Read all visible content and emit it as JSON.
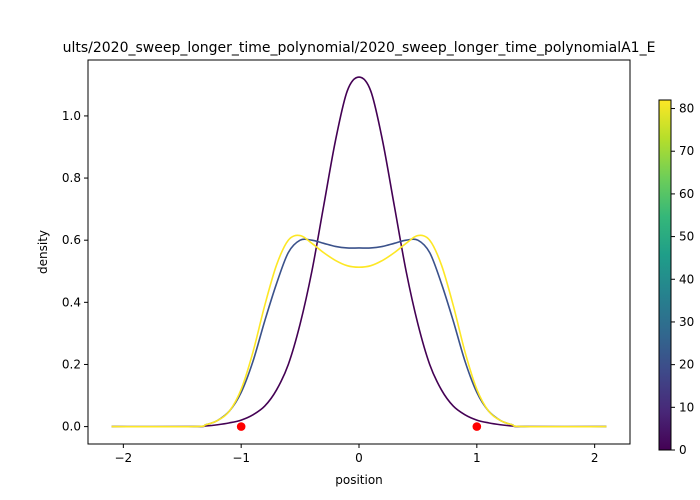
{
  "chart_data": {
    "type": "line",
    "title": "ults/2020_sweep_longer_time_polynomial/2020_sweep_longer_time_polynomialA1_E",
    "xlabel": "position",
    "ylabel": "density",
    "xlim": [
      -2.3,
      2.3
    ],
    "ylim": [
      -0.056,
      1.18
    ],
    "xticks": [
      -2,
      -1,
      0,
      1,
      2
    ],
    "yticks": [
      0.0,
      0.2,
      0.4,
      0.6,
      0.8,
      1.0
    ],
    "grid": false,
    "x_range": [
      -2.1,
      2.1
    ],
    "series": [
      {
        "color": "#440154",
        "x": [
          -2.1,
          -1.4,
          -1.3,
          -1.2,
          -1.1,
          -1.0,
          -0.9,
          -0.8,
          -0.7,
          -0.6,
          -0.5,
          -0.4,
          -0.3,
          -0.2,
          -0.1,
          0.0,
          0.1,
          0.2,
          0.3,
          0.4,
          0.5,
          0.6,
          0.7,
          0.8,
          0.9,
          1.0,
          1.1,
          1.2,
          1.3,
          1.4,
          2.1
        ],
        "y": [
          0.0,
          0.0,
          0.002,
          0.006,
          0.012,
          0.021,
          0.038,
          0.066,
          0.118,
          0.2,
          0.33,
          0.5,
          0.71,
          0.92,
          1.08,
          1.125,
          1.08,
          0.92,
          0.71,
          0.5,
          0.33,
          0.2,
          0.118,
          0.066,
          0.038,
          0.021,
          0.012,
          0.006,
          0.002,
          0.0,
          0.0
        ]
      },
      {
        "color": "#3b528b",
        "x": [
          -2.1,
          -1.4,
          -1.3,
          -1.2,
          -1.1,
          -1.0,
          -0.9,
          -0.8,
          -0.7,
          -0.6,
          -0.5,
          -0.4,
          -0.3,
          -0.2,
          -0.1,
          0.0,
          0.1,
          0.2,
          0.3,
          0.4,
          0.5,
          0.6,
          0.7,
          0.8,
          0.9,
          1.0,
          1.1,
          1.2,
          1.3,
          1.4,
          2.1
        ],
        "y": [
          0.0,
          0.0,
          0.006,
          0.02,
          0.05,
          0.11,
          0.21,
          0.34,
          0.46,
          0.56,
          0.6,
          0.6,
          0.59,
          0.58,
          0.575,
          0.575,
          0.575,
          0.58,
          0.59,
          0.6,
          0.6,
          0.56,
          0.46,
          0.34,
          0.21,
          0.11,
          0.05,
          0.02,
          0.006,
          0.0,
          0.0
        ]
      },
      {
        "color": "#fde725",
        "x": [
          -2.1,
          -1.4,
          -1.3,
          -1.2,
          -1.1,
          -1.0,
          -0.9,
          -0.8,
          -0.7,
          -0.6,
          -0.5,
          -0.4,
          -0.3,
          -0.2,
          -0.1,
          0.0,
          0.1,
          0.2,
          0.3,
          0.4,
          0.5,
          0.6,
          0.7,
          0.8,
          0.9,
          1.0,
          1.1,
          1.2,
          1.3,
          1.4,
          2.1
        ],
        "y": [
          0.0,
          0.0,
          0.006,
          0.02,
          0.05,
          0.12,
          0.24,
          0.39,
          0.52,
          0.6,
          0.615,
          0.59,
          0.56,
          0.535,
          0.518,
          0.513,
          0.518,
          0.535,
          0.56,
          0.59,
          0.615,
          0.6,
          0.52,
          0.39,
          0.24,
          0.12,
          0.05,
          0.02,
          0.006,
          0.0,
          0.0
        ]
      }
    ],
    "points": {
      "color": "#ff0000",
      "x": [
        -1,
        1
      ],
      "y": [
        0,
        0
      ]
    },
    "colorbar": {
      "range": [
        0,
        82
      ],
      "ticks": [
        0,
        10,
        20,
        30,
        40,
        50,
        60,
        70,
        80
      ],
      "colormap": [
        "#440154",
        "#482878",
        "#3e4989",
        "#31688e",
        "#26828e",
        "#1f9e89",
        "#35b779",
        "#6ece58",
        "#b5de2b",
        "#fde725"
      ]
    }
  }
}
